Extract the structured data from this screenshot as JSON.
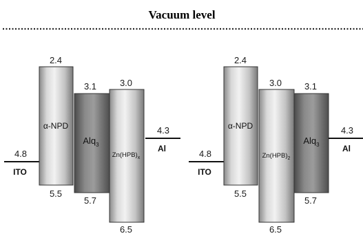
{
  "vacuum_level_label": "Vacuum level",
  "left_panel": {
    "ito": {
      "label": "ITO",
      "value": "4.8"
    },
    "al": {
      "label": "Al",
      "value": "4.3"
    },
    "layers": [
      {
        "name": "α-NPD",
        "lumo": "2.4",
        "homo": "5.5",
        "style": "light"
      },
      {
        "name": "Alq",
        "sub": "3",
        "lumo": "3.1",
        "homo": "5.7",
        "style": "dark"
      },
      {
        "name": "Zn(HPB)",
        "sub": "x",
        "lumo": "3.0",
        "homo": "6.5",
        "style": "light"
      }
    ]
  },
  "right_panel": {
    "ito": {
      "label": "ITO",
      "value": "4.8"
    },
    "al": {
      "label": "Al",
      "value": "4.3"
    },
    "layers": [
      {
        "name": "α-NPD",
        "lumo": "2.4",
        "homo": "5.5",
        "style": "light"
      },
      {
        "name": "Zn(HPB)",
        "sub": "2",
        "lumo": "3.0",
        "homo": "6.5",
        "style": "light"
      },
      {
        "name": "Alq",
        "sub": "3",
        "lumo": "3.1",
        "homo": "5.7",
        "style": "dark"
      }
    ]
  }
}
